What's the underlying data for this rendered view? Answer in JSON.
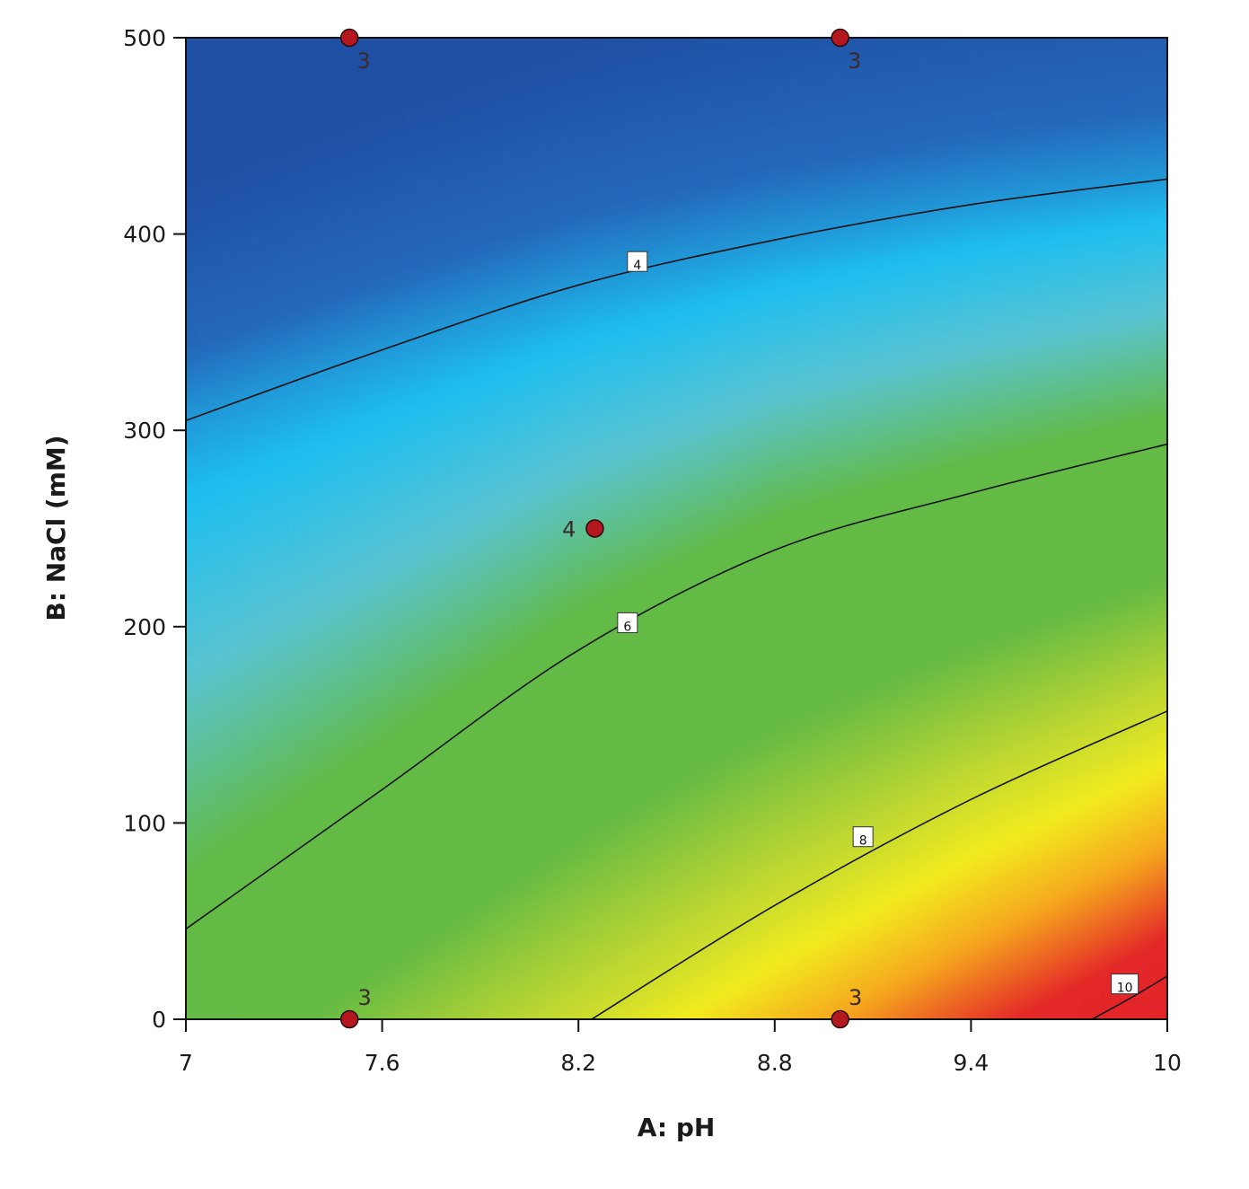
{
  "chart_data": {
    "type": "contour",
    "xlabel": "A: pH",
    "ylabel": "B: NaCl (mM)",
    "xlim": [
      7,
      10
    ],
    "ylim": [
      0,
      500
    ],
    "x_ticks": [
      "7",
      "7.6",
      "8.2",
      "8.8",
      "9.4",
      "10"
    ],
    "y_ticks": [
      "0",
      "100",
      "200",
      "300",
      "400",
      "500"
    ],
    "colors": {
      "low": "#1f4fa3",
      "mid_low": "#1ec0f0",
      "mid": "#62bb46",
      "mid_high": "#f2ee1e",
      "high": "#e0262a",
      "point": "#b5171f",
      "contour_line": "#111111"
    },
    "contours": [
      {
        "label": "4",
        "label_at": [
          8.38,
          386
        ],
        "points": [
          [
            7,
            305
          ],
          [
            7.6,
            341
          ],
          [
            8.2,
            374
          ],
          [
            8.8,
            397
          ],
          [
            9.4,
            415
          ],
          [
            10,
            428
          ]
        ]
      },
      {
        "label": "6",
        "label_at": [
          8.35,
          202
        ],
        "points": [
          [
            7,
            46
          ],
          [
            7.6,
            117
          ],
          [
            8.2,
            188
          ],
          [
            8.8,
            239
          ],
          [
            9.4,
            268
          ],
          [
            10,
            293
          ]
        ]
      },
      {
        "label": "8",
        "label_at": [
          9.07,
          93
        ],
        "points": [
          [
            8.24,
            0
          ],
          [
            8.8,
            58
          ],
          [
            9.4,
            112
          ],
          [
            10,
            157
          ]
        ]
      },
      {
        "label": "10",
        "label_at": [
          9.87,
          18
        ],
        "points": [
          [
            9.77,
            0
          ],
          [
            9.9,
            12
          ],
          [
            10,
            22
          ]
        ]
      }
    ],
    "design_points": [
      {
        "x": 7.5,
        "y": 500,
        "label": "3",
        "label_pos": "below"
      },
      {
        "x": 9.0,
        "y": 500,
        "label": "3",
        "label_pos": "below"
      },
      {
        "x": 8.25,
        "y": 250,
        "label": "4",
        "label_pos": "left"
      },
      {
        "x": 7.5,
        "y": 0,
        "label": "3",
        "label_pos": "above"
      },
      {
        "x": 9.0,
        "y": 0,
        "label": "3",
        "label_pos": "above"
      }
    ]
  }
}
